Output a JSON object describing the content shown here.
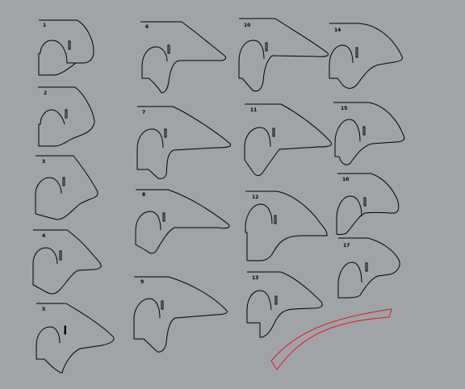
{
  "viewport": {
    "background": "#a0a4a9"
  },
  "pieces": [
    {
      "id": "piece-1",
      "label": "1"
    },
    {
      "id": "piece-2",
      "label": "2"
    },
    {
      "id": "piece-3",
      "label": "3"
    },
    {
      "id": "piece-4",
      "label": "4"
    },
    {
      "id": "piece-5",
      "label": "5"
    },
    {
      "id": "piece-6",
      "label": "6"
    },
    {
      "id": "piece-7",
      "label": "7"
    },
    {
      "id": "piece-8",
      "label": "8"
    },
    {
      "id": "piece-9",
      "label": "9"
    },
    {
      "id": "piece-10",
      "label": "10"
    },
    {
      "id": "piece-11",
      "label": "11"
    },
    {
      "id": "piece-12",
      "label": "12"
    },
    {
      "id": "piece-13",
      "label": "13"
    },
    {
      "id": "piece-14",
      "label": "14"
    },
    {
      "id": "piece-15",
      "label": "15"
    },
    {
      "id": "piece-16",
      "label": "16"
    },
    {
      "id": "piece-17",
      "label": "17"
    }
  ],
  "highlight": {
    "color": "#e0141e"
  }
}
